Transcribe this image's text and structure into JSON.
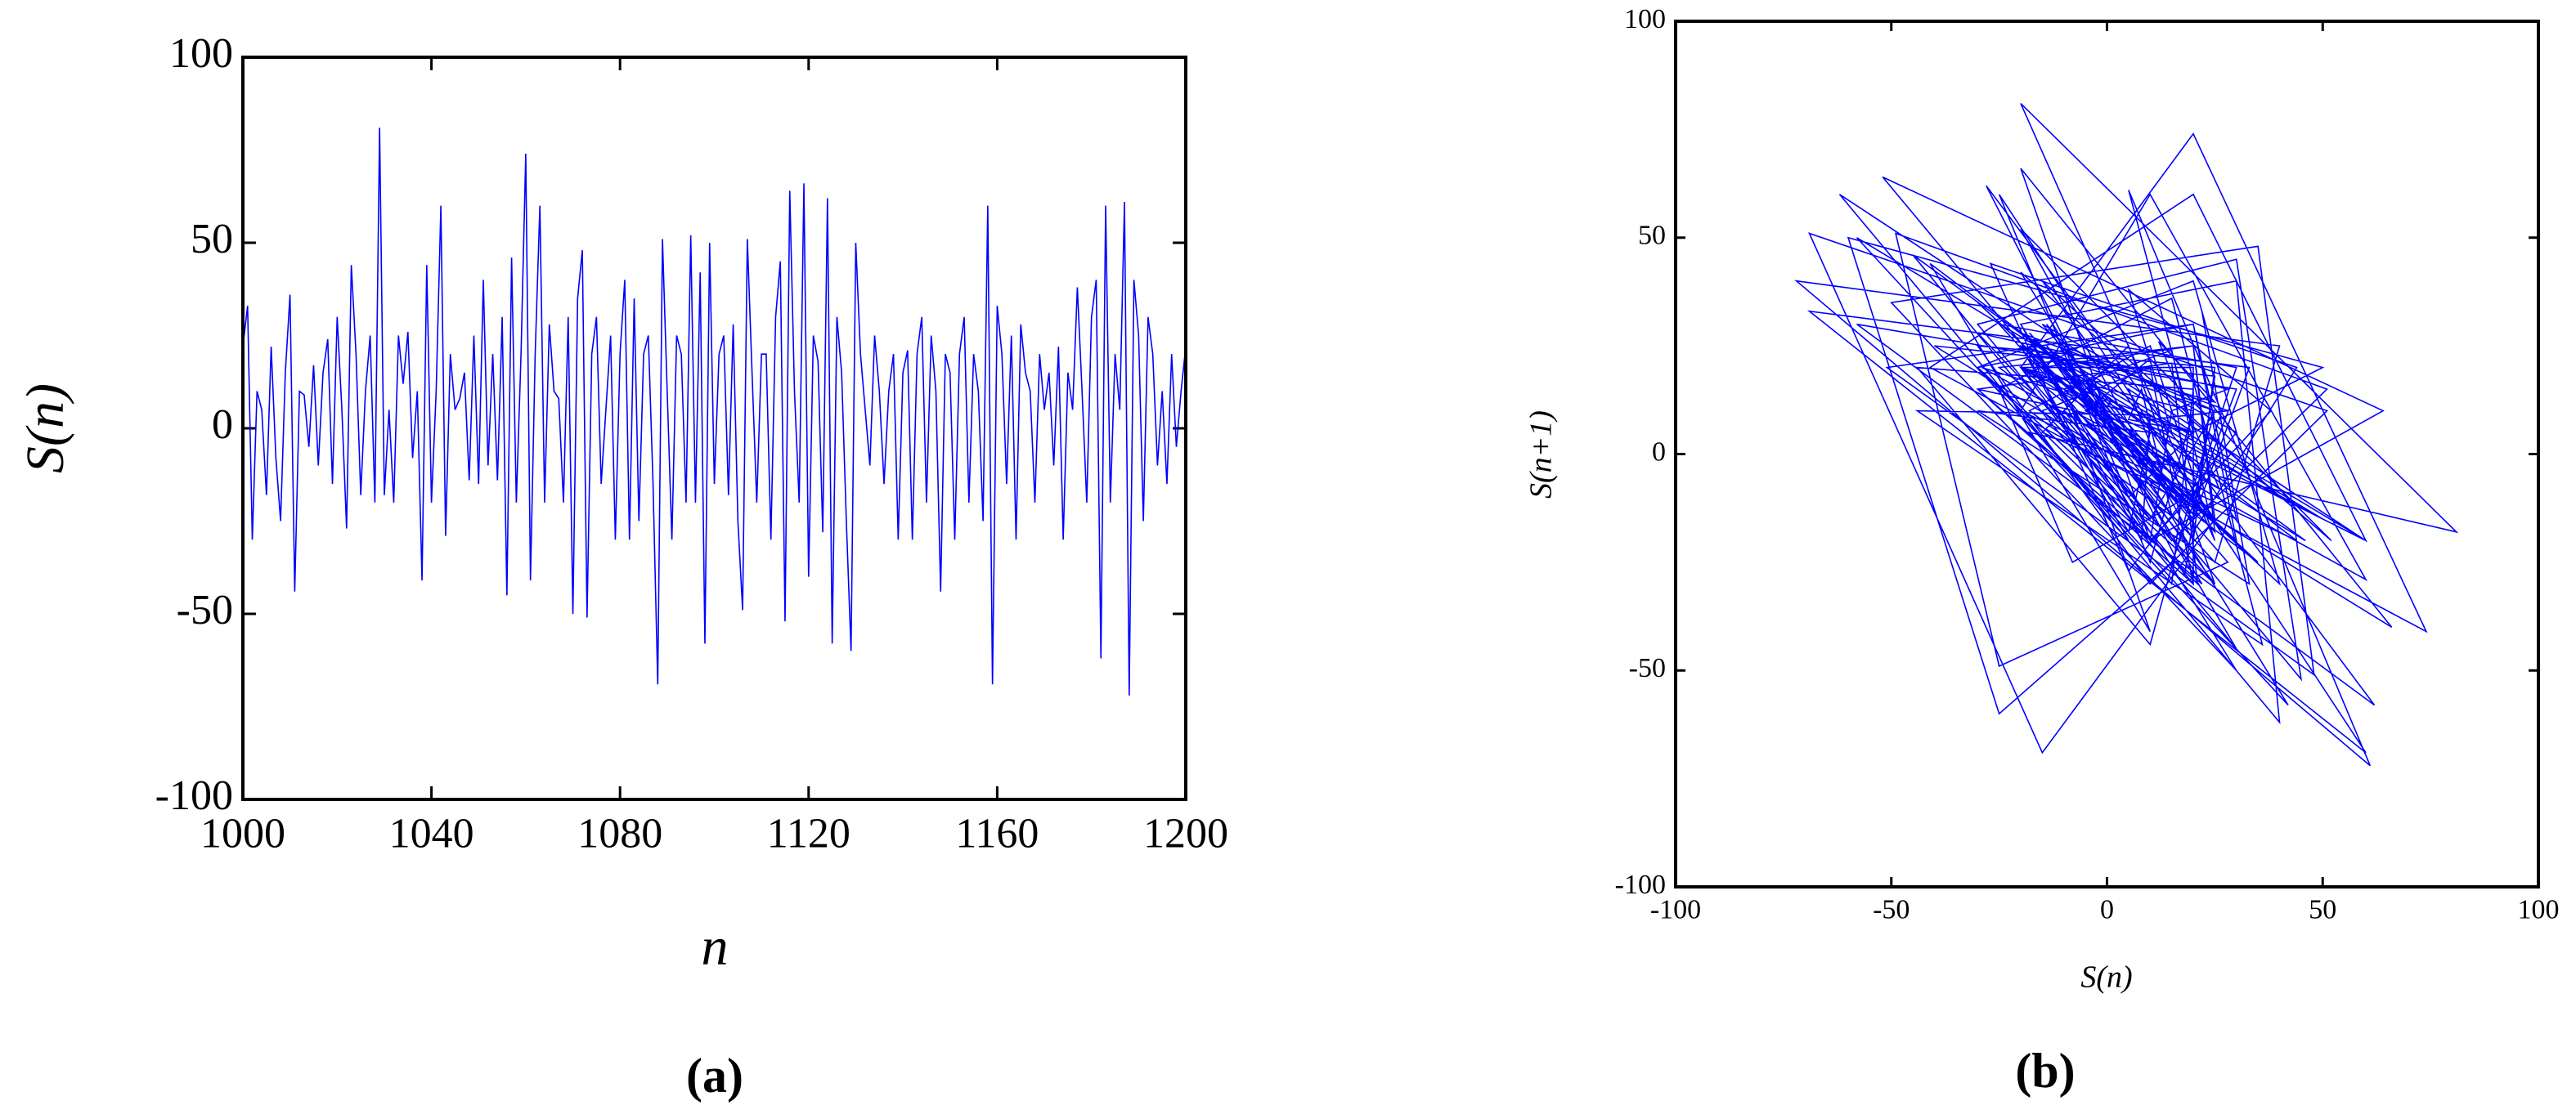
{
  "chart_data": [
    {
      "type": "line",
      "panel_label": "(a)",
      "x_label": "n",
      "y_label": "S(n)",
      "color": "#0000ff",
      "x": [
        1000,
        1001,
        1002,
        1003,
        1004,
        1005,
        1006,
        1007,
        1008,
        1009,
        1010,
        1011,
        1012,
        1013,
        1014,
        1015,
        1016,
        1017,
        1018,
        1019,
        1020,
        1021,
        1022,
        1023,
        1024,
        1025,
        1026,
        1027,
        1028,
        1029,
        1030,
        1031,
        1032,
        1033,
        1034,
        1035,
        1036,
        1037,
        1038,
        1039,
        1040,
        1041,
        1042,
        1043,
        1044,
        1045,
        1046,
        1047,
        1048,
        1049,
        1050,
        1051,
        1052,
        1053,
        1054,
        1055,
        1056,
        1057,
        1058,
        1059,
        1060,
        1061,
        1062,
        1063,
        1064,
        1065,
        1066,
        1067,
        1068,
        1069,
        1070,
        1071,
        1072,
        1073,
        1074,
        1075,
        1076,
        1077,
        1078,
        1079,
        1080,
        1081,
        1082,
        1083,
        1084,
        1085,
        1086,
        1087,
        1088,
        1089,
        1090,
        1091,
        1092,
        1093,
        1094,
        1095,
        1096,
        1097,
        1098,
        1099,
        1100,
        1101,
        1102,
        1103,
        1104,
        1105,
        1106,
        1107,
        1108,
        1109,
        1110,
        1111,
        1112,
        1113,
        1114,
        1115,
        1116,
        1117,
        1118,
        1119,
        1120,
        1121,
        1122,
        1123,
        1124,
        1125,
        1126,
        1127,
        1128,
        1129,
        1130,
        1131,
        1132,
        1133,
        1134,
        1135,
        1136,
        1137,
        1138,
        1139,
        1140,
        1141,
        1142,
        1143,
        1144,
        1145,
        1146,
        1147,
        1148,
        1149,
        1150,
        1151,
        1152,
        1153,
        1154,
        1155,
        1156,
        1157,
        1158,
        1159,
        1160,
        1161,
        1162,
        1163,
        1164,
        1165,
        1166,
        1167,
        1168,
        1169,
        1170,
        1171,
        1172,
        1173,
        1174,
        1175,
        1176,
        1177,
        1178,
        1179,
        1180,
        1181,
        1182,
        1183,
        1184,
        1185,
        1186,
        1187,
        1188,
        1189,
        1190,
        1191,
        1192,
        1193,
        1194,
        1195,
        1196,
        1197,
        1198,
        1199,
        1200
      ],
      "values": [
        22,
        33,
        -30,
        10,
        5,
        -18,
        22,
        -8,
        -25,
        15,
        36,
        -44,
        10,
        9,
        -5,
        17,
        -10,
        15,
        24,
        -15,
        30,
        5,
        -27,
        44,
        20,
        -18,
        10,
        25,
        -20,
        81,
        -18,
        5,
        -20,
        25,
        12,
        26,
        -8,
        10,
        -41,
        44,
        -20,
        10,
        60,
        -29,
        20,
        5,
        8,
        15,
        -14,
        25,
        -15,
        40,
        -10,
        20,
        -14,
        30,
        -45,
        46,
        -20,
        20,
        74,
        -41,
        20,
        60,
        -20,
        28,
        10,
        8,
        -20,
        30,
        -50,
        35,
        48,
        -51,
        20,
        30,
        -15,
        5,
        25,
        -30,
        20,
        40,
        -30,
        35,
        -25,
        20,
        25,
        -15,
        -69,
        51,
        10,
        -30,
        25,
        20,
        -20,
        52,
        -20,
        42,
        -58,
        50,
        -15,
        20,
        25,
        -18,
        28,
        -25,
        -49,
        51,
        15,
        -20,
        20,
        20,
        -30,
        30,
        45,
        -52,
        64,
        10,
        -20,
        66,
        -40,
        25,
        18,
        -28,
        62,
        -58,
        30,
        15,
        -25,
        -60,
        50,
        20,
        5,
        -10,
        25,
        10,
        -15,
        10,
        20,
        -30,
        15,
        21,
        -30,
        20,
        30,
        -20,
        25,
        10,
        -44,
        20,
        15,
        -30,
        20,
        30,
        -20,
        20,
        10,
        -25,
        60,
        -69,
        33,
        20,
        -15,
        25,
        -30,
        28,
        15,
        10,
        -20,
        20,
        5,
        15,
        -10,
        22,
        -30,
        15,
        5,
        38,
        10,
        -20,
        30,
        40,
        -62,
        60,
        -20,
        20,
        5,
        61,
        -72,
        40,
        25,
        -25,
        30,
        20,
        -10,
        10,
        -15,
        20,
        -5,
        10,
        22
      ],
      "xlim": [
        1000,
        1200
      ],
      "xticks": [
        1000,
        1040,
        1080,
        1120,
        1160,
        1200
      ],
      "ylim": [
        -100,
        100
      ],
      "yticks": [
        -100,
        -50,
        0,
        50,
        100
      ]
    },
    {
      "type": "lag",
      "panel_label": "(b)",
      "x_label": "S(n)",
      "y_label": "S(n+1)",
      "color": "#0000ff",
      "values": [
        22,
        33,
        -30,
        10,
        5,
        -18,
        22,
        -8,
        -25,
        15,
        36,
        -44,
        10,
        9,
        -5,
        17,
        -10,
        15,
        24,
        -15,
        30,
        5,
        -27,
        44,
        20,
        -18,
        10,
        25,
        -20,
        81,
        -18,
        5,
        -20,
        25,
        12,
        26,
        -8,
        10,
        -41,
        44,
        -20,
        10,
        60,
        -29,
        20,
        5,
        8,
        15,
        -14,
        25,
        -15,
        40,
        -10,
        20,
        -14,
        30,
        -45,
        46,
        -20,
        20,
        74,
        -41,
        20,
        60,
        -20,
        28,
        10,
        8,
        -20,
        30,
        -50,
        35,
        48,
        -51,
        20,
        30,
        -15,
        5,
        25,
        -30,
        20,
        40,
        -30,
        35,
        -25,
        20,
        25,
        -15,
        -69,
        51,
        10,
        -30,
        25,
        20,
        -20,
        52,
        -20,
        42,
        -58,
        50,
        -15,
        20,
        25,
        -18,
        28,
        -25,
        -49,
        51,
        15,
        -20,
        20,
        20,
        -30,
        30,
        45,
        -52,
        64,
        10,
        -20,
        66,
        -40,
        25,
        18,
        -28,
        62,
        -58,
        30,
        15,
        -25,
        -60,
        50,
        20,
        5,
        -10,
        25,
        10,
        -15,
        10,
        20,
        -30,
        15,
        21,
        -30,
        20,
        30,
        -20,
        25,
        10,
        -44,
        20,
        15,
        -30,
        20,
        30,
        -20,
        20,
        10,
        -25,
        60,
        -69,
        33,
        20,
        -15,
        25,
        -30,
        28,
        15,
        10,
        -20,
        20,
        5,
        15,
        -10,
        22,
        -30,
        15,
        5,
        38,
        10,
        -20,
        30,
        40,
        -62,
        60,
        -20,
        20,
        5,
        61,
        -72,
        40,
        25,
        -25,
        30,
        20,
        -10,
        10,
        -15,
        20,
        -5,
        10,
        22
      ],
      "xlim": [
        -100,
        100
      ],
      "xticks": [
        -100,
        -50,
        0,
        50,
        100
      ],
      "ylim": [
        -100,
        100
      ],
      "yticks": [
        -100,
        -50,
        0,
        50,
        100
      ]
    }
  ]
}
